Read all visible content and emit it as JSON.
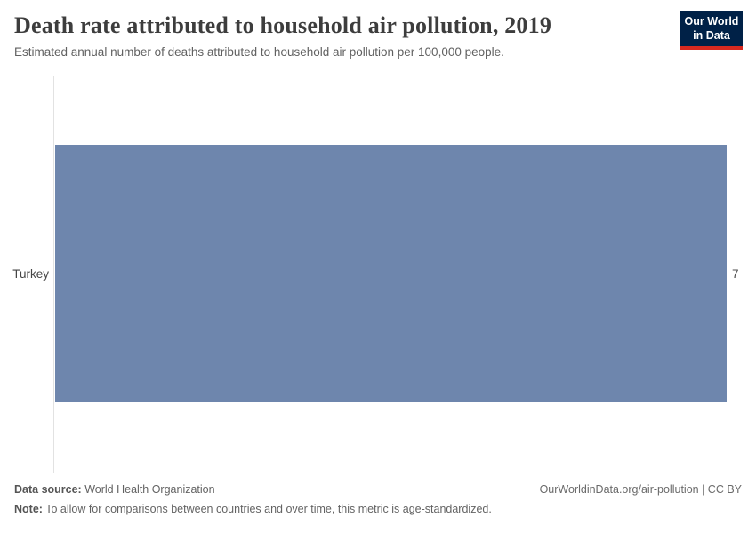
{
  "header": {
    "title": "Death rate attributed to household air pollution, 2019",
    "subtitle": "Estimated annual number of deaths attributed to household air pollution per 100,000 people."
  },
  "logo": {
    "line1": "Our World",
    "line2": "in Data"
  },
  "chart_data": {
    "type": "bar",
    "orientation": "horizontal",
    "categories": [
      "Turkey"
    ],
    "values": [
      7
    ],
    "value_labels": [
      "7"
    ],
    "title": "Death rate attributed to household air pollution, 2019",
    "xlabel": "",
    "ylabel": "",
    "xlim": [
      0,
      7
    ],
    "grid": false,
    "legend": false
  },
  "footer": {
    "data_source_label": "Data source:",
    "data_source_value": "World Health Organization",
    "note_label": "Note:",
    "note_value": "To allow for comparisons between countries and over time, this metric is age-standardized.",
    "rights": "OurWorldinData.org/air-pollution | CC BY"
  },
  "colors": {
    "bar": "#6e86ad",
    "logo_bg": "#002147",
    "logo_stripe": "#d8291f",
    "axis_line": "#e2e2e2"
  }
}
